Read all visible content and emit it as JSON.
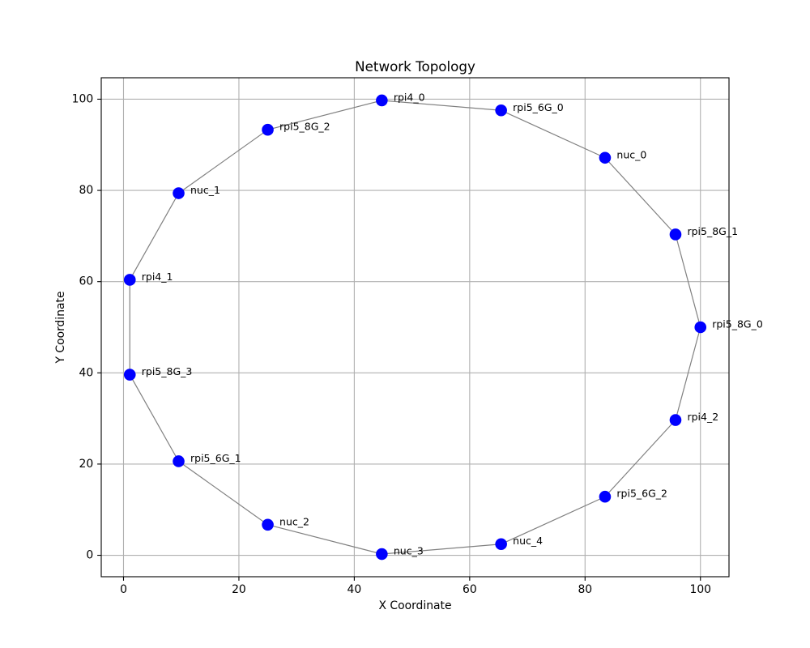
{
  "chart_data": {
    "type": "scatter",
    "title": "Network Topology",
    "xlabel": "X Coordinate",
    "ylabel": "Y Coordinate",
    "xlim": [
      -3.86,
      104.95
    ],
    "ylim": [
      -4.7,
      104.7
    ],
    "xticks": [
      0,
      20,
      40,
      60,
      80,
      100
    ],
    "yticks": [
      0,
      20,
      40,
      60,
      80,
      100
    ],
    "grid": true,
    "node_color": "#0000ff",
    "edge_color": "#808080",
    "nodes": [
      {
        "label": "rpi5_8G_0",
        "x": 100.0,
        "y": 50.0
      },
      {
        "label": "rpi5_8G_1",
        "x": 95.68,
        "y": 70.34
      },
      {
        "label": "nuc_0",
        "x": 83.46,
        "y": 87.16
      },
      {
        "label": "rpi5_6G_0",
        "x": 65.45,
        "y": 97.55
      },
      {
        "label": "rpi4_0",
        "x": 44.77,
        "y": 99.73
      },
      {
        "label": "rpi5_8G_2",
        "x": 25.0,
        "y": 93.3
      },
      {
        "label": "nuc_1",
        "x": 9.55,
        "y": 79.39
      },
      {
        "label": "rpi4_1",
        "x": 1.09,
        "y": 60.4
      },
      {
        "label": "rpi5_8G_3",
        "x": 1.09,
        "y": 39.6
      },
      {
        "label": "rpi5_6G_1",
        "x": 9.55,
        "y": 20.61
      },
      {
        "label": "nuc_2",
        "x": 25.0,
        "y": 6.7
      },
      {
        "label": "nuc_3",
        "x": 44.77,
        "y": 0.27
      },
      {
        "label": "nuc_4",
        "x": 65.45,
        "y": 2.45
      },
      {
        "label": "rpi5_6G_2",
        "x": 83.46,
        "y": 12.84
      },
      {
        "label": "rpi4_2",
        "x": 95.68,
        "y": 29.66
      }
    ],
    "edges": [
      [
        "rpi5_8G_0",
        "rpi5_8G_1"
      ],
      [
        "rpi5_8G_1",
        "nuc_0"
      ],
      [
        "nuc_0",
        "rpi5_6G_0"
      ],
      [
        "rpi5_6G_0",
        "rpi4_0"
      ],
      [
        "rpi4_0",
        "rpi5_8G_2"
      ],
      [
        "rpi5_8G_2",
        "nuc_1"
      ],
      [
        "nuc_1",
        "rpi4_1"
      ],
      [
        "rpi4_1",
        "rpi5_8G_3"
      ],
      [
        "rpi5_8G_3",
        "rpi5_6G_1"
      ],
      [
        "rpi5_6G_1",
        "nuc_2"
      ],
      [
        "nuc_2",
        "nuc_3"
      ],
      [
        "nuc_3",
        "nuc_4"
      ],
      [
        "nuc_4",
        "rpi5_6G_2"
      ],
      [
        "rpi5_6G_2",
        "rpi4_2"
      ],
      [
        "rpi4_2",
        "rpi5_8G_0"
      ]
    ]
  }
}
